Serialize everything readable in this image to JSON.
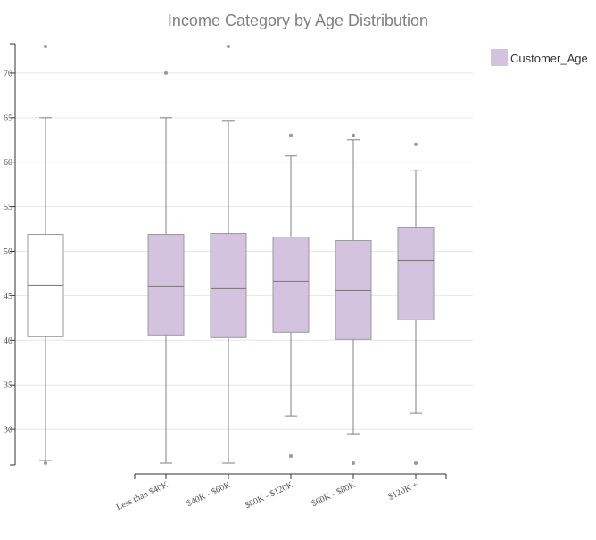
{
  "chart_data": {
    "type": "box",
    "title": "Income Category by Age Distribution",
    "xlabel": "",
    "ylabel": "",
    "ylim": [
      26,
      73.5
    ],
    "yticks": [
      30,
      35,
      40,
      45,
      50,
      55,
      60,
      65,
      70
    ],
    "grid": true,
    "legend": {
      "position": "top-right",
      "entries": [
        "Customer_Age"
      ]
    },
    "colors": {
      "box_fill": "#d4c3df",
      "box_stroke": "#999999",
      "whisker": "#808080",
      "outlier": "#999999",
      "grid": "#e6e6e6",
      "axis": "#333333"
    },
    "overall": {
      "whislo": 26.5,
      "q1": 40.4,
      "med": 46.2,
      "q3": 51.9,
      "whishi": 65,
      "outliers": [
        26.2,
        73
      ]
    },
    "series": [
      {
        "name": "Customer_Age",
        "boxes": [
          {
            "category": "Less than $40K",
            "whislo": 26.2,
            "q1": 40.6,
            "med": 46.1,
            "q3": 51.9,
            "whishi": 65,
            "outliers": [
              70
            ]
          },
          {
            "category": "$40K - $60K",
            "whislo": 26.2,
            "q1": 40.3,
            "med": 45.8,
            "q3": 52,
            "whishi": 64.6,
            "outliers": [
              73
            ]
          },
          {
            "category": "$80K - $120K",
            "whislo": 31.5,
            "q1": 40.9,
            "med": 46.6,
            "q3": 51.6,
            "whishi": 60.7,
            "outliers": [
              63,
              27
            ]
          },
          {
            "category": "$60K - $80K",
            "whislo": 29.5,
            "q1": 40.1,
            "med": 45.6,
            "q3": 51.2,
            "whishi": 62.5,
            "outliers": [
              63,
              26.2
            ]
          },
          {
            "category": "$120K +",
            "whislo": 31.8,
            "q1": 42.3,
            "med": 49,
            "q3": 52.7,
            "whishi": 59.1,
            "outliers": [
              62,
              26.2
            ]
          }
        ]
      }
    ]
  }
}
